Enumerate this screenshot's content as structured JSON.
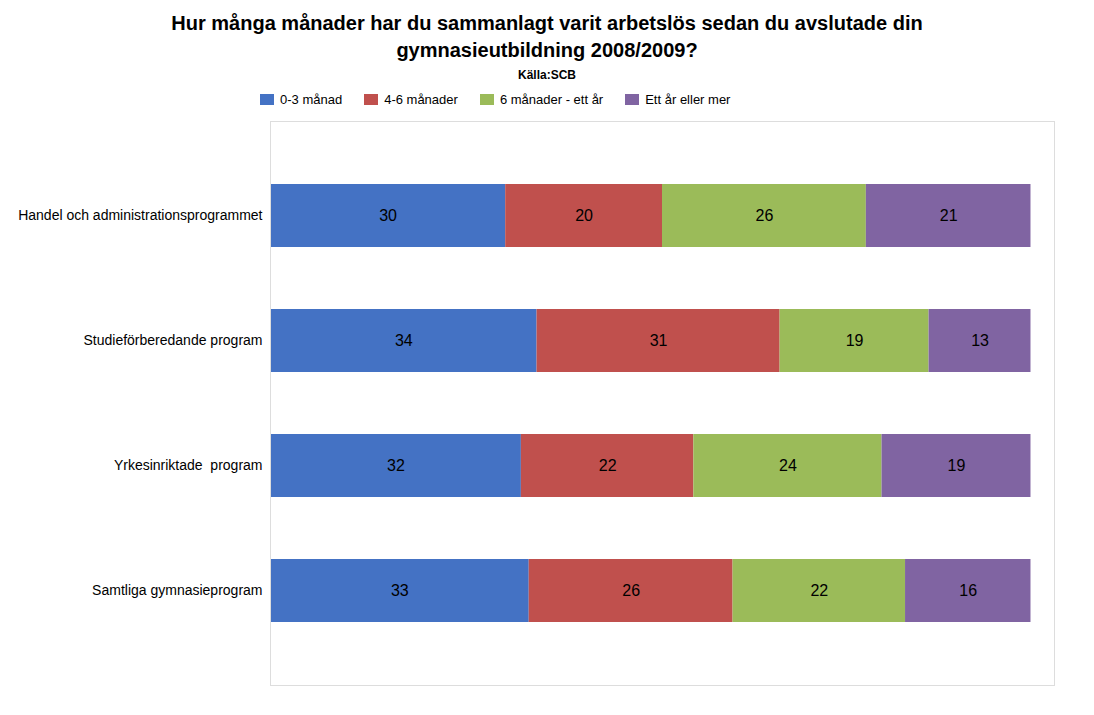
{
  "chart_data": {
    "type": "bar",
    "orientation": "horizontal",
    "stacked": true,
    "title": "Hur många månader har du sammanlagt varit arbetslös sedan du avslutade din\ngymnasieutbildning 2008/2009?",
    "subtitle": "Källa:SCB",
    "categories": [
      "Handel och administrationsprogrammet",
      "Studieförberedande program",
      "Yrkesinriktade  program",
      "Samtliga gymnasieprogram"
    ],
    "series": [
      {
        "name": "0-3 månad",
        "color": "#4472C4",
        "values": [
          30,
          34,
          32,
          33
        ]
      },
      {
        "name": "4-6 månader",
        "color": "#C0504D",
        "values": [
          20,
          31,
          22,
          26
        ]
      },
      {
        "name": "6 månader - ett år",
        "color": "#9BBB59",
        "values": [
          26,
          19,
          24,
          22
        ]
      },
      {
        "name": "Ett år eller mer",
        "color": "#8064A2",
        "values": [
          21,
          13,
          19,
          16
        ]
      }
    ],
    "xlim": [
      0,
      100
    ],
    "tick_labels": "y",
    "data_labels": true,
    "legend": "top",
    "grid": false
  }
}
